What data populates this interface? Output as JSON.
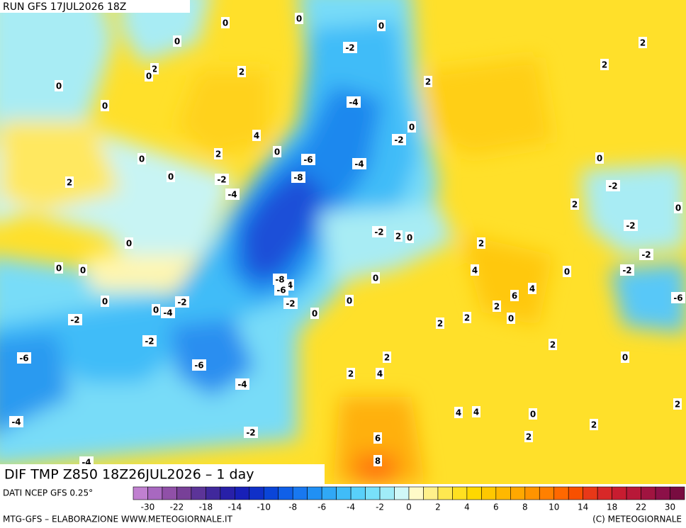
{
  "header": {
    "run": "RUN GFS 17JUL2026 18Z",
    "title": "DIF TMP Z850 18Z26JUL2026 – 1 day"
  },
  "map_labels": [
    0,
    0,
    0,
    0,
    -2,
    2,
    2,
    0,
    2,
    2,
    0,
    2,
    -4,
    0,
    0,
    4,
    -2,
    0,
    2,
    0,
    -6,
    0,
    -4,
    0,
    -2,
    -8,
    2,
    -2,
    -4,
    2,
    0,
    -2,
    2,
    0,
    -2,
    0,
    2,
    -2,
    0,
    0,
    4,
    0,
    -2,
    -8,
    4,
    0,
    -6,
    4,
    6,
    -6,
    0,
    -2,
    -2,
    0,
    0,
    -4,
    2,
    0,
    2,
    -2,
    0,
    2,
    -2,
    2,
    -6,
    0,
    2,
    -6,
    2,
    4,
    -4,
    4,
    4,
    0,
    2,
    -4,
    2,
    -2,
    2,
    6,
    -4,
    8
  ],
  "legend": {
    "source": "DATI NCEP GFS 0.25°",
    "colors": [
      "#c080d0",
      "#a868c0",
      "#9050a8",
      "#784098",
      "#5c3498",
      "#40289c",
      "#2820a8",
      "#1820b8",
      "#1030c8",
      "#0a45d8",
      "#1060e8",
      "#1878f0",
      "#2090f4",
      "#30a8f6",
      "#40bcf8",
      "#58d0fa",
      "#78e0fa",
      "#a0ecf8",
      "#d0f8f8",
      "#fffac8",
      "#fff08a",
      "#ffe850",
      "#ffe020",
      "#ffd800",
      "#ffc800",
      "#ffb800",
      "#ffa800",
      "#ff9400",
      "#ff8000",
      "#ff6800",
      "#f85000",
      "#e83818",
      "#d82828",
      "#c81c30",
      "#b81838",
      "#a01440",
      "#8c1048",
      "#780c40"
    ],
    "labels": [
      -30,
      -22,
      -18,
      -14,
      -10,
      -8,
      -6,
      -4,
      -2,
      0,
      2,
      4,
      6,
      8,
      10,
      14,
      18,
      22,
      30
    ]
  },
  "footer": {
    "left": "MTG-GFS – ELABORAZIONE WWW.METEOGIORNALE.IT",
    "right": "(C) METEOGIORNALE"
  }
}
